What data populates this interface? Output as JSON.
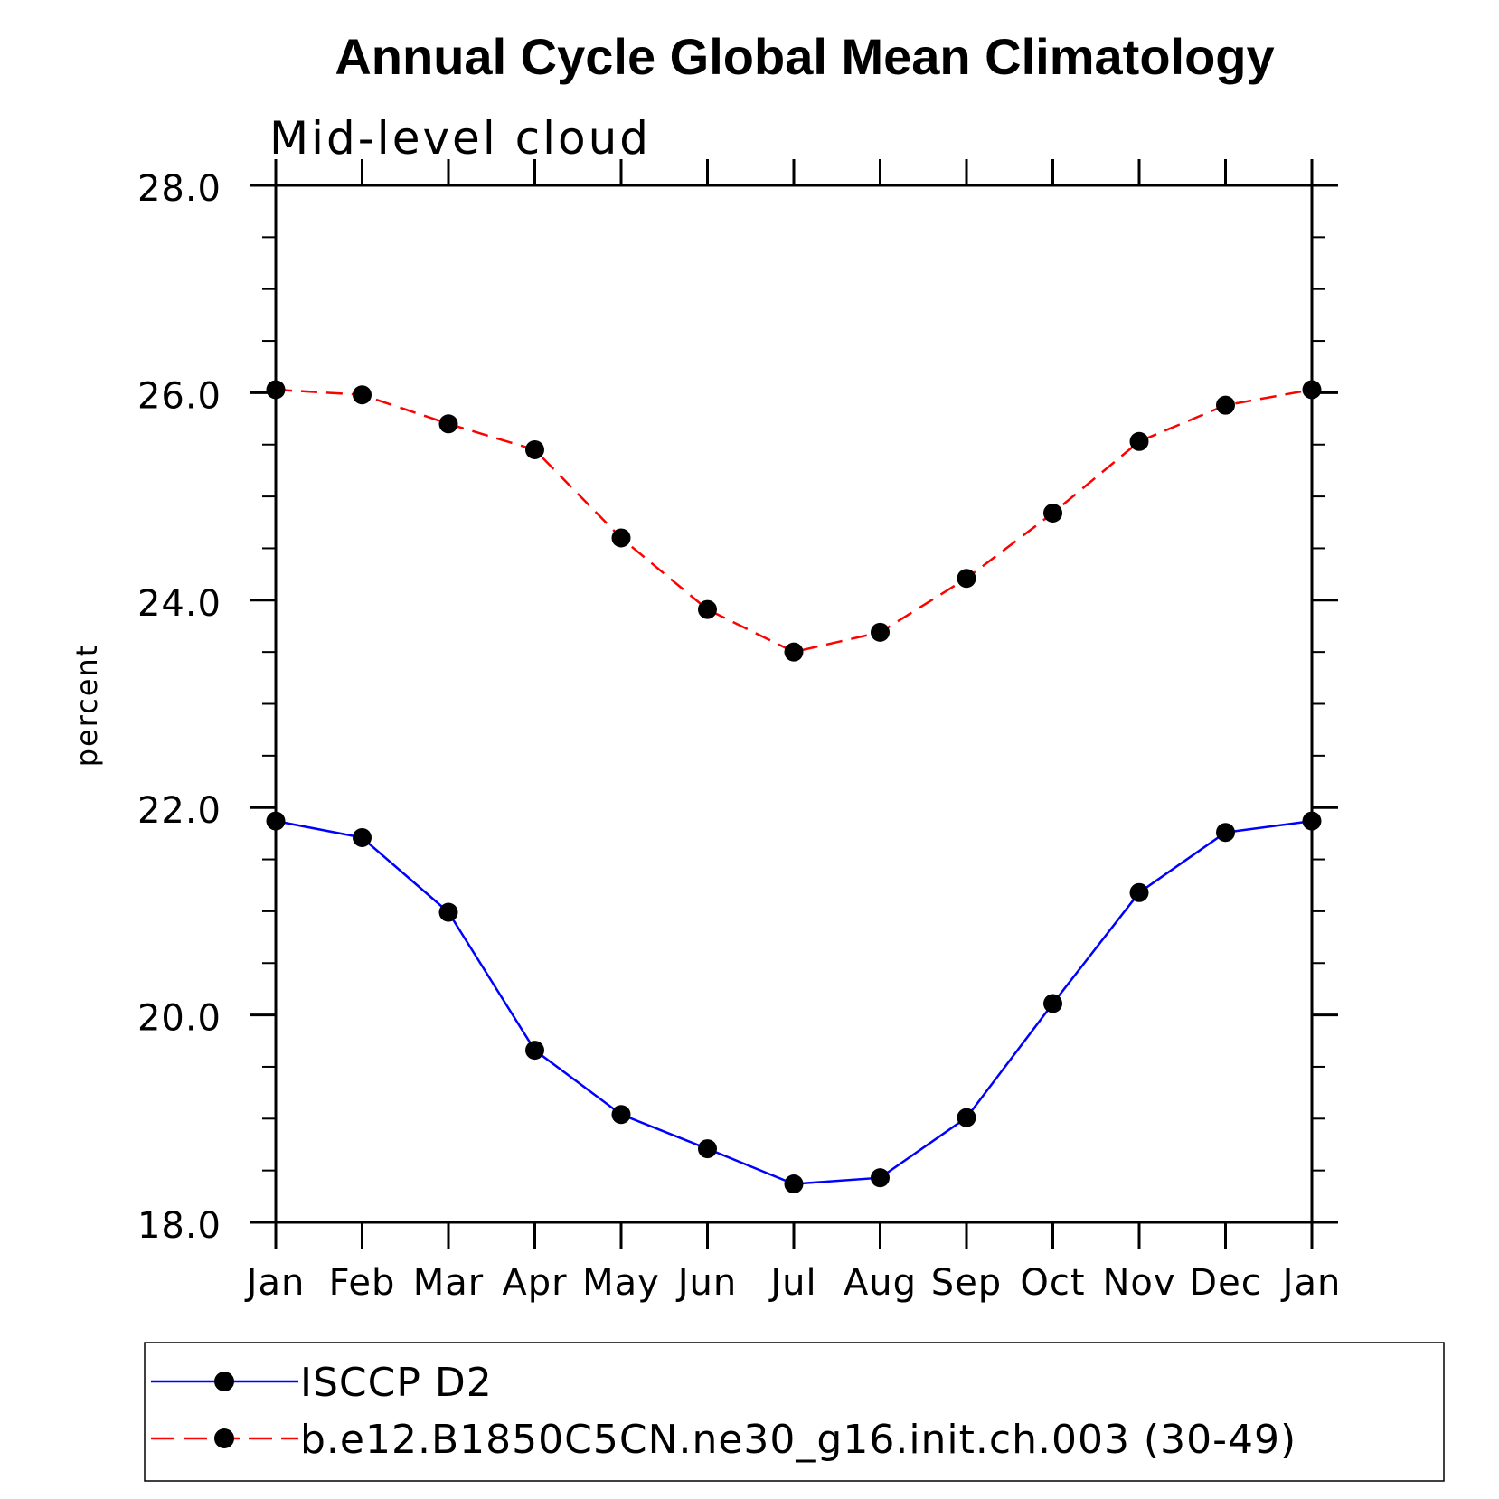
{
  "chart_data": {
    "type": "line",
    "title": "Annual Cycle Global Mean Climatology",
    "subtitle": "Mid-level cloud",
    "xlabel": "",
    "ylabel": "percent",
    "ylim": [
      18.0,
      28.0
    ],
    "yticks": [
      "18.0",
      "20.0",
      "22.0",
      "24.0",
      "26.0",
      "28.0"
    ],
    "categories": [
      "Jan",
      "Feb",
      "Mar",
      "Apr",
      "May",
      "Jun",
      "Jul",
      "Aug",
      "Sep",
      "Oct",
      "Nov",
      "Dec",
      "Jan"
    ],
    "grid": false,
    "legend_position": "bottom",
    "series": [
      {
        "name": "ISCCP D2",
        "color": "#0000ff",
        "line_style": "solid",
        "marker": "filled-circle",
        "values": [
          21.87,
          21.71,
          20.99,
          19.66,
          19.04,
          18.71,
          18.37,
          18.43,
          19.01,
          20.11,
          21.18,
          21.76,
          21.87
        ]
      },
      {
        "name": "b.e12.B1850C5CN.ne30_g16.init.ch.003 (30-49)",
        "color": "#ff0000",
        "line_style": "dashed",
        "marker": "filled-circle",
        "values": [
          26.03,
          25.98,
          25.7,
          25.45,
          24.6,
          23.91,
          23.5,
          23.69,
          24.21,
          24.84,
          25.53,
          25.88,
          26.03
        ]
      }
    ]
  }
}
